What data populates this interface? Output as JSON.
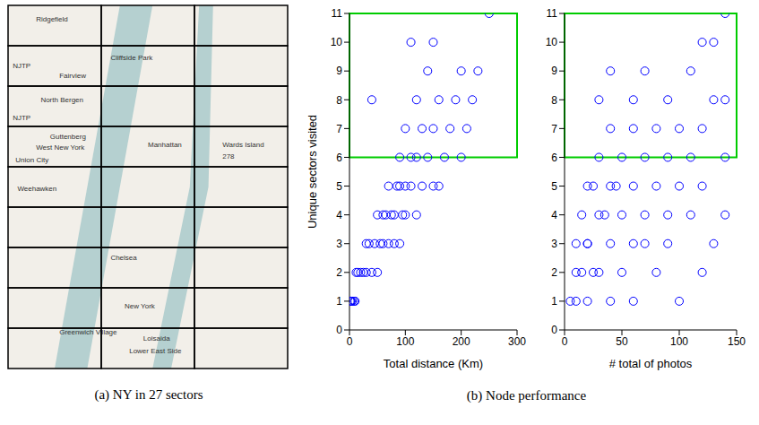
{
  "map": {
    "caption": "(a) NY in 27 sectors",
    "columns": 3,
    "rows": 9,
    "labels": [
      "Ridgefield",
      "Cliffside Park",
      "NJTP",
      "Fairview",
      "North Bergen",
      "NJTP",
      "Guttenberg",
      "West New York",
      "Union City",
      "Manhattan",
      "Wards Island",
      "278",
      "Weehawken",
      "Chelsea",
      "New York",
      "Greenwich Village",
      "Loisaida",
      "Lower East Side"
    ]
  },
  "chart_data": {
    "type": "scatter",
    "caption": "(b) Node performance",
    "x_label": "Total distance (Km)",
    "y_label": "Unique sectors visited",
    "z_label": "# total of photos",
    "xlim": [
      0,
      300
    ],
    "xticks": [
      0,
      100,
      200,
      300
    ],
    "zlim": [
      0,
      150
    ],
    "zticks": [
      0,
      50,
      100,
      150
    ],
    "ylim": [
      0,
      11
    ],
    "yticks": [
      0,
      1,
      2,
      3,
      4,
      5,
      6,
      7,
      8,
      9,
      10,
      11
    ],
    "color": "#0000ff",
    "marker": "circle",
    "highlight": {
      "ylim": [
        6,
        11
      ],
      "color": "#00cc00"
    },
    "x": [
      2,
      5,
      1,
      8,
      3,
      10,
      15,
      25,
      20,
      40,
      30,
      12,
      50,
      30,
      45,
      60,
      55,
      70,
      35,
      80,
      90,
      50,
      65,
      80,
      100,
      75,
      120,
      95,
      60,
      70,
      90,
      110,
      130,
      100,
      150,
      85,
      160,
      90,
      120,
      140,
      170,
      200,
      110,
      100,
      150,
      180,
      130,
      210,
      120,
      160,
      220,
      40,
      190,
      140,
      200,
      230,
      150,
      110,
      250
    ],
    "z": [
      5,
      20,
      60,
      10,
      100,
      40,
      10,
      30,
      80,
      15,
      50,
      120,
      25,
      20,
      60,
      10,
      90,
      40,
      130,
      20,
      70,
      30,
      70,
      15,
      50,
      110,
      35,
      90,
      140,
      40,
      80,
      25,
      60,
      120,
      45,
      20,
      100,
      50,
      90,
      30,
      70,
      110,
      140,
      60,
      40,
      120,
      100,
      80,
      30,
      90,
      60,
      140,
      130,
      70,
      110,
      40,
      120,
      130,
      140
    ],
    "y": [
      1,
      1,
      1,
      1,
      1,
      1,
      2,
      2,
      2,
      2,
      2,
      2,
      2,
      3,
      3,
      3,
      3,
      3,
      3,
      3,
      3,
      4,
      4,
      4,
      4,
      4,
      4,
      4,
      4,
      5,
      5,
      5,
      5,
      5,
      5,
      5,
      5,
      6,
      6,
      6,
      6,
      6,
      6,
      7,
      7,
      7,
      7,
      7,
      8,
      8,
      8,
      8,
      8,
      9,
      9,
      9,
      10,
      10,
      11
    ]
  }
}
